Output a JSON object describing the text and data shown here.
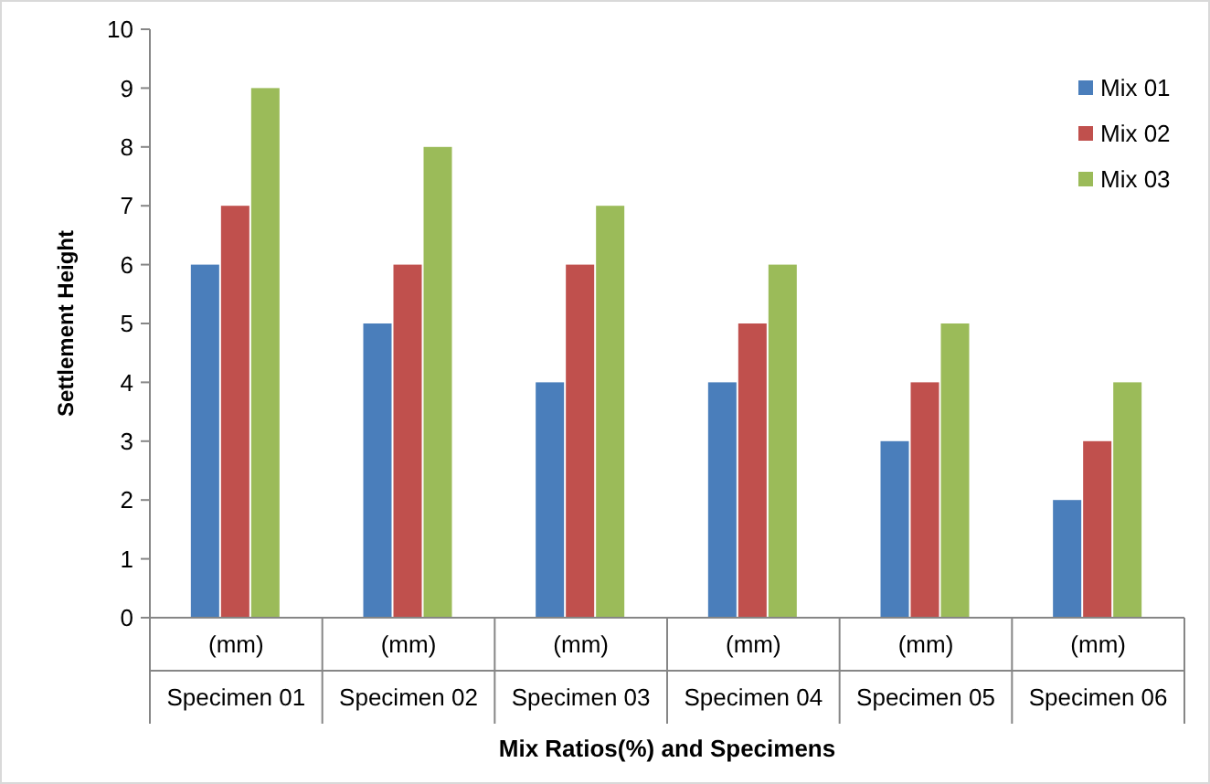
{
  "chart_data": {
    "type": "bar",
    "xlabel": "Mix Ratios(%) and Specimens",
    "ylabel": "Settlement  Height",
    "categories": [
      "(mm)\nSpecimen 01",
      "(mm)\nSpecimen 02",
      "(mm)\nSpecimen 03",
      "(mm)\nSpecimen 04",
      "(mm)\nSpecimen 05",
      "(mm)\nSpecimen 06"
    ],
    "series": [
      {
        "name": "Mix 01",
        "color": "#4a7ebb",
        "values": [
          6,
          5,
          4,
          4,
          3,
          2
        ]
      },
      {
        "name": "Mix 02",
        "color": "#c0504d",
        "values": [
          7,
          6,
          6,
          5,
          4,
          3
        ]
      },
      {
        "name": "Mix 03",
        "color": "#9bbb59",
        "values": [
          9,
          8,
          7,
          6,
          5,
          4
        ]
      }
    ],
    "ylim": [
      0,
      10
    ],
    "yticks": [
      0,
      1,
      2,
      3,
      4,
      5,
      6,
      7,
      8,
      9,
      10
    ],
    "legend": "top right"
  }
}
